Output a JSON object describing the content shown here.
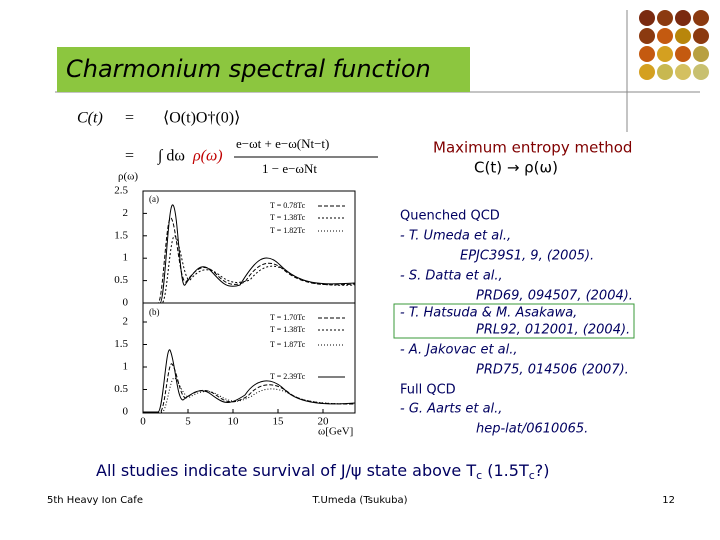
{
  "header": {
    "title": "Charmonium spectral function"
  },
  "formula": {
    "lhs": "C(t)",
    "eq1": "=",
    "rhs1": "⟨O(t)O†(0)⟩",
    "eq2": "=",
    "integral": "∫ dω",
    "rho": "ρ(ω)",
    "numerator": "e−ωt + e−ω(Nt−t)",
    "denominator": "1 − e−ωNt"
  },
  "method": [
    "Maximum entropy method",
    "C(t) → ρ(ω)"
  ],
  "references": {
    "quenched_heading": "Quenched QCD",
    "quenched": [
      {
        "authors": "- T. Umeda et al.,",
        "cite": "EPJC39S1, 9, (2005)."
      },
      {
        "authors": "- S. Datta et al.,",
        "cite": "PRD69, 094507, (2004)."
      },
      {
        "authors": "- T. Hatsuda & M. Asakawa,",
        "cite": "PRL92, 012001, (2004)."
      },
      {
        "authors": "- A. Jakovac et al.,",
        "cite": "PRD75, 014506 (2007)."
      }
    ],
    "full_heading": "Full QCD",
    "full": [
      {
        "authors": "- G. Aarts et al.,",
        "cite": "hep-lat/0610065."
      }
    ]
  },
  "plot": {
    "y_label": "ρ(ω)",
    "x_label": "ω[GeV]",
    "x_ticks": [
      "0",
      "5",
      "10",
      "15",
      "20"
    ],
    "panels": [
      {
        "label": "(a)",
        "y_ticks": [
          "0",
          "0.5",
          "1",
          "1.5",
          "2",
          "2.5"
        ],
        "legend": [
          "T = 0.78Tc",
          "T = 1.38Tc",
          "T = 1.82Tc"
        ]
      },
      {
        "label": "(b)",
        "y_ticks": [
          "0",
          "0.5",
          "1",
          "1.5",
          "2"
        ],
        "legend": [
          "T = 1.70Tc",
          "T = 1.38Tc",
          "T = 1.87Tc",
          "T = 2.39Tc"
        ]
      }
    ]
  },
  "conclusion": {
    "text": "All studies indicate survival of J/ψ state above T",
    "sub1": "c",
    "mid": " (1.5T",
    "sub2": "c",
    "end": "?)"
  },
  "footer": {
    "left": "5th Heavy Ion Cafe",
    "center": "T.Umeda (Tsukuba)",
    "page": "12"
  }
}
